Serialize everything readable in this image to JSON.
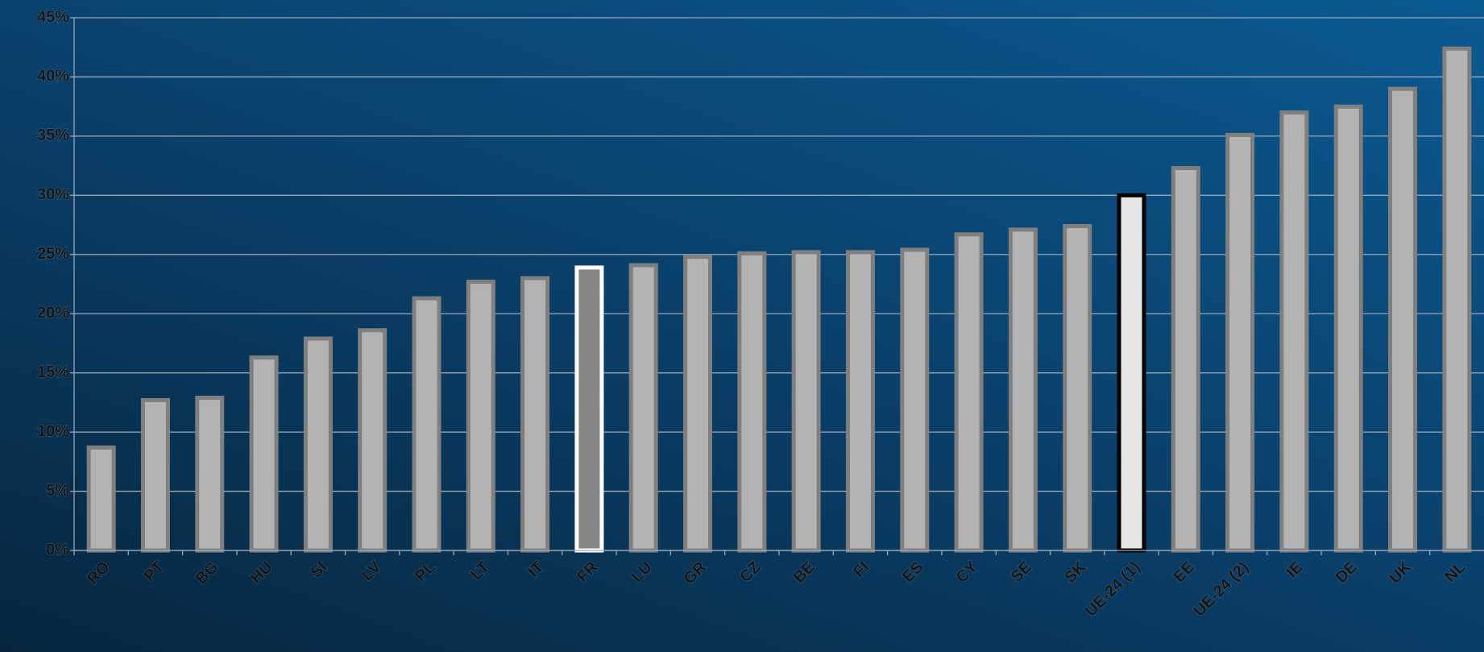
{
  "chart_data": {
    "type": "bar",
    "categories": [
      "RO",
      "PT",
      "BG",
      "HU",
      "SI",
      "LV",
      "PL",
      "LT",
      "IT",
      "FR",
      "LU",
      "GR",
      "CZ",
      "BE",
      "FI",
      "ES",
      "CY",
      "SE",
      "SK",
      "UE-24 (1)",
      "EE",
      "UE-24 (2)",
      "IE",
      "DE",
      "UK",
      "NL"
    ],
    "values": [
      8.7,
      12.7,
      12.9,
      16.3,
      17.9,
      18.6,
      21.3,
      22.7,
      23.0,
      23.9,
      24.1,
      24.8,
      25.1,
      25.2,
      25.2,
      25.4,
      26.7,
      27.1,
      27.4,
      30.0,
      32.3,
      35.1,
      37.0,
      37.5,
      39.0,
      42.4
    ],
    "colors": [
      "#b3b3b3",
      "#b3b3b3",
      "#b3b3b3",
      "#b3b3b3",
      "#b3b3b3",
      "#b3b3b3",
      "#b3b3b3",
      "#b3b3b3",
      "#b3b3b3",
      "#858585",
      "#b3b3b3",
      "#b3b3b3",
      "#b3b3b3",
      "#b3b3b3",
      "#b3b3b3",
      "#b3b3b3",
      "#b3b3b3",
      "#b3b3b3",
      "#b3b3b3",
      "#e6e6e6",
      "#b3b3b3",
      "#b3b3b3",
      "#b3b3b3",
      "#b3b3b3",
      "#b3b3b3",
      "#b3b3b3"
    ],
    "edge_colors": [
      "#7f7f7f",
      "#7f7f7f",
      "#7f7f7f",
      "#7f7f7f",
      "#7f7f7f",
      "#7f7f7f",
      "#7f7f7f",
      "#7f7f7f",
      "#7f7f7f",
      "#ffffff",
      "#7f7f7f",
      "#7f7f7f",
      "#7f7f7f",
      "#7f7f7f",
      "#7f7f7f",
      "#7f7f7f",
      "#7f7f7f",
      "#7f7f7f",
      "#7f7f7f",
      "#000000",
      "#7f7f7f",
      "#7f7f7f",
      "#7f7f7f",
      "#7f7f7f",
      "#7f7f7f",
      "#7f7f7f"
    ],
    "ylim": [
      0,
      45
    ],
    "yticks": [
      {
        "value": 0,
        "label": "0%"
      },
      {
        "value": 5,
        "label": "5%"
      },
      {
        "value": 10,
        "label": "10%"
      },
      {
        "value": 15,
        "label": "15%"
      },
      {
        "value": 20,
        "label": "20%"
      },
      {
        "value": 25,
        "label": "25%"
      },
      {
        "value": 30,
        "label": "30%"
      },
      {
        "value": 35,
        "label": "35%"
      },
      {
        "value": 40,
        "label": "40%"
      },
      {
        "value": 45,
        "label": "45%"
      }
    ],
    "grid": true
  }
}
